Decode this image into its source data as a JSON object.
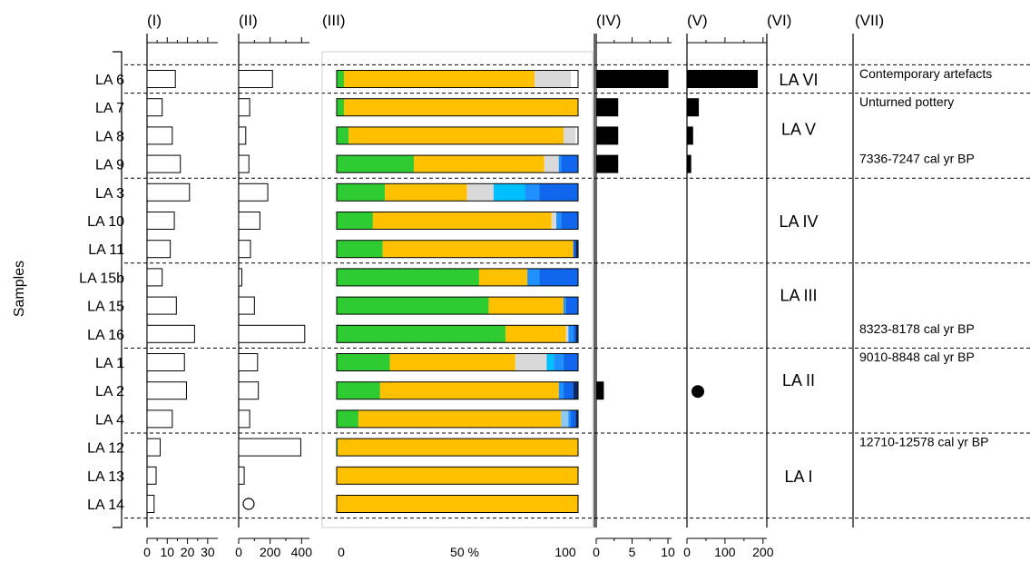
{
  "chart_data": {
    "type": "bar",
    "ylabel": "Samples",
    "samples": [
      "LA 6",
      "LA 7",
      "LA 8",
      "LA 9",
      "LA 3",
      "LA 10",
      "LA 11",
      "LA 15b",
      "LA 15",
      "LA 16",
      "LA 1",
      "LA 2",
      "LA 4",
      "LA 12",
      "LA 13",
      "LA 14"
    ],
    "panel_I": {
      "label": "(I)",
      "ticks": [
        "0",
        "10",
        "20",
        "30"
      ],
      "tick_values": [
        0,
        10,
        20,
        30
      ],
      "xlim": [
        0,
        35
      ],
      "values": [
        14,
        7.5,
        12.5,
        16.5,
        21,
        13.5,
        11.5,
        7.5,
        14.5,
        23.5,
        18.5,
        19.5,
        12.5,
        6.5,
        4.5,
        3.5
      ]
    },
    "panel_II": {
      "label": "(II)",
      "ticks": [
        "0",
        "200",
        "400"
      ],
      "tick_values": [
        0,
        200,
        400
      ],
      "xlim": [
        0,
        450
      ],
      "values": [
        215,
        70,
        45,
        65,
        185,
        135,
        75,
        20,
        100,
        420,
        120,
        125,
        70,
        395,
        35,
        null
      ],
      "zero_marker_sample": "LA 14"
    },
    "panel_III": {
      "label": "(III)",
      "ticks": [
        "0",
        "50 %",
        "100"
      ],
      "tick_values": [
        0,
        50,
        100
      ],
      "categories_colors": [
        "#2ecc32",
        "#ffc000",
        "#d9d9d9",
        "#8ec8ee",
        "#00bfff",
        "#1e90ff",
        "#1166ee",
        "#0a2a66"
      ],
      "rows": [
        [
          3,
          79,
          15,
          0,
          0,
          0,
          0,
          0
        ],
        [
          3,
          97,
          0,
          0,
          0,
          0,
          0,
          0
        ],
        [
          5,
          89,
          5,
          0,
          0,
          0,
          0,
          0
        ],
        [
          32,
          54,
          6,
          0,
          0,
          1,
          7,
          0
        ],
        [
          20,
          34,
          11,
          0,
          13,
          6,
          16,
          0
        ],
        [
          15,
          74,
          2,
          0,
          0,
          2,
          7,
          0
        ],
        [
          19,
          79,
          0,
          0,
          0,
          0,
          1,
          1
        ],
        [
          59,
          20,
          0,
          0,
          0,
          5,
          16,
          0
        ],
        [
          63,
          31,
          0,
          0,
          0,
          1,
          5,
          0
        ],
        [
          70,
          25,
          1,
          0,
          0,
          2,
          1,
          1
        ],
        [
          22,
          52,
          13,
          0,
          3,
          4,
          6,
          0
        ],
        [
          18,
          74,
          0,
          0,
          0,
          2,
          4,
          2
        ],
        [
          9,
          84,
          0,
          3,
          0,
          1,
          2,
          1
        ],
        [
          0.5,
          99.5,
          0,
          0,
          0,
          0,
          0,
          0
        ],
        [
          0,
          100,
          0,
          0,
          0,
          0,
          0,
          0
        ],
        [
          0,
          100,
          0,
          0,
          0,
          0,
          0,
          0
        ]
      ]
    },
    "panel_IV": {
      "label": "(IV)",
      "ticks": [
        "0",
        "5",
        "10"
      ],
      "tick_values": [
        0,
        5,
        10
      ],
      "xlim": [
        0,
        10.5
      ],
      "values": [
        10,
        3,
        3,
        3,
        0,
        0,
        0,
        0,
        0,
        0,
        0,
        1,
        0,
        0,
        0,
        0
      ]
    },
    "panel_V": {
      "label": "(V)",
      "ticks": [
        "0",
        "100",
        "200"
      ],
      "tick_values": [
        0,
        100,
        200
      ],
      "xlim": [
        0,
        210
      ],
      "values": [
        185,
        30,
        15,
        10,
        0,
        0,
        0,
        0,
        0,
        0,
        0,
        0,
        0,
        0,
        0,
        0
      ],
      "dot_sample": "LA 2"
    },
    "panel_VI": {
      "label": "(VI)",
      "units": [
        {
          "name": "LA VI",
          "first": 0,
          "last": 0
        },
        {
          "name": "LA V",
          "first": 1,
          "last": 3
        },
        {
          "name": "LA IV",
          "first": 4,
          "last": 6
        },
        {
          "name": "LA III",
          "first": 7,
          "last": 9
        },
        {
          "name": "LA II",
          "first": 10,
          "last": 12
        },
        {
          "name": "LA I",
          "first": 13,
          "last": 15
        }
      ]
    },
    "panel_VII": {
      "label": "(VII)",
      "annotations": [
        {
          "text": "Contemporary artefacts",
          "row": 0
        },
        {
          "text": "Unturned pottery",
          "row": 1
        },
        {
          "text": "7336-7247 cal yr BP",
          "row": 3
        },
        {
          "text": "8323-8178 cal yr BP",
          "row": 9
        },
        {
          "text": "9010-8848 cal yr BP",
          "row": 10
        },
        {
          "text": "12710-12578 cal yr BP",
          "row": 13
        }
      ]
    }
  }
}
